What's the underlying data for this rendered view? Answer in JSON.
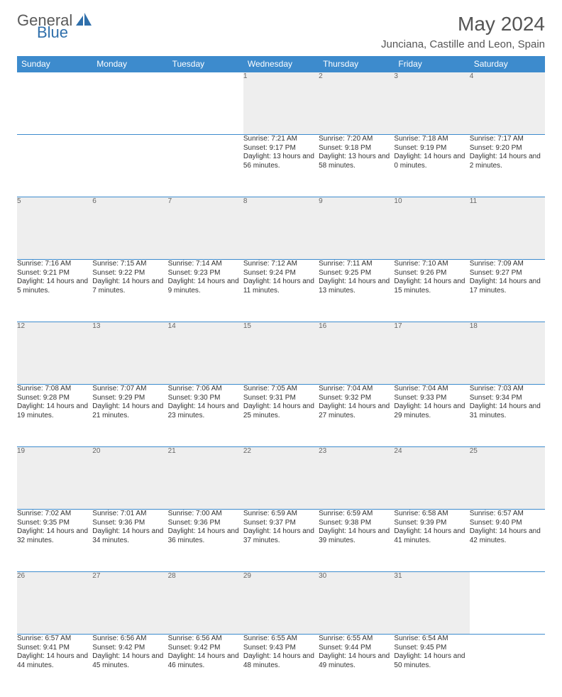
{
  "brand": {
    "word1": "General",
    "word2": "Blue",
    "text_color": "#5a5a5a",
    "accent_color": "#2f6fab"
  },
  "title": "May 2024",
  "location": "Junciana, Castille and Leon, Spain",
  "header_bg": "#3d8bcd",
  "header_fg": "#ffffff",
  "daynum_bg": "#eeeeee",
  "grid_line": "#3d8bcd",
  "days": [
    "Sunday",
    "Monday",
    "Tuesday",
    "Wednesday",
    "Thursday",
    "Friday",
    "Saturday"
  ],
  "weeks": [
    [
      null,
      null,
      null,
      {
        "n": "1",
        "sr": "7:21 AM",
        "ss": "9:17 PM",
        "dl": "13 hours and 56 minutes."
      },
      {
        "n": "2",
        "sr": "7:20 AM",
        "ss": "9:18 PM",
        "dl": "13 hours and 58 minutes."
      },
      {
        "n": "3",
        "sr": "7:18 AM",
        "ss": "9:19 PM",
        "dl": "14 hours and 0 minutes."
      },
      {
        "n": "4",
        "sr": "7:17 AM",
        "ss": "9:20 PM",
        "dl": "14 hours and 2 minutes."
      }
    ],
    [
      {
        "n": "5",
        "sr": "7:16 AM",
        "ss": "9:21 PM",
        "dl": "14 hours and 5 minutes."
      },
      {
        "n": "6",
        "sr": "7:15 AM",
        "ss": "9:22 PM",
        "dl": "14 hours and 7 minutes."
      },
      {
        "n": "7",
        "sr": "7:14 AM",
        "ss": "9:23 PM",
        "dl": "14 hours and 9 minutes."
      },
      {
        "n": "8",
        "sr": "7:12 AM",
        "ss": "9:24 PM",
        "dl": "14 hours and 11 minutes."
      },
      {
        "n": "9",
        "sr": "7:11 AM",
        "ss": "9:25 PM",
        "dl": "14 hours and 13 minutes."
      },
      {
        "n": "10",
        "sr": "7:10 AM",
        "ss": "9:26 PM",
        "dl": "14 hours and 15 minutes."
      },
      {
        "n": "11",
        "sr": "7:09 AM",
        "ss": "9:27 PM",
        "dl": "14 hours and 17 minutes."
      }
    ],
    [
      {
        "n": "12",
        "sr": "7:08 AM",
        "ss": "9:28 PM",
        "dl": "14 hours and 19 minutes."
      },
      {
        "n": "13",
        "sr": "7:07 AM",
        "ss": "9:29 PM",
        "dl": "14 hours and 21 minutes."
      },
      {
        "n": "14",
        "sr": "7:06 AM",
        "ss": "9:30 PM",
        "dl": "14 hours and 23 minutes."
      },
      {
        "n": "15",
        "sr": "7:05 AM",
        "ss": "9:31 PM",
        "dl": "14 hours and 25 minutes."
      },
      {
        "n": "16",
        "sr": "7:04 AM",
        "ss": "9:32 PM",
        "dl": "14 hours and 27 minutes."
      },
      {
        "n": "17",
        "sr": "7:04 AM",
        "ss": "9:33 PM",
        "dl": "14 hours and 29 minutes."
      },
      {
        "n": "18",
        "sr": "7:03 AM",
        "ss": "9:34 PM",
        "dl": "14 hours and 31 minutes."
      }
    ],
    [
      {
        "n": "19",
        "sr": "7:02 AM",
        "ss": "9:35 PM",
        "dl": "14 hours and 32 minutes."
      },
      {
        "n": "20",
        "sr": "7:01 AM",
        "ss": "9:36 PM",
        "dl": "14 hours and 34 minutes."
      },
      {
        "n": "21",
        "sr": "7:00 AM",
        "ss": "9:36 PM",
        "dl": "14 hours and 36 minutes."
      },
      {
        "n": "22",
        "sr": "6:59 AM",
        "ss": "9:37 PM",
        "dl": "14 hours and 37 minutes."
      },
      {
        "n": "23",
        "sr": "6:59 AM",
        "ss": "9:38 PM",
        "dl": "14 hours and 39 minutes."
      },
      {
        "n": "24",
        "sr": "6:58 AM",
        "ss": "9:39 PM",
        "dl": "14 hours and 41 minutes."
      },
      {
        "n": "25",
        "sr": "6:57 AM",
        "ss": "9:40 PM",
        "dl": "14 hours and 42 minutes."
      }
    ],
    [
      {
        "n": "26",
        "sr": "6:57 AM",
        "ss": "9:41 PM",
        "dl": "14 hours and 44 minutes."
      },
      {
        "n": "27",
        "sr": "6:56 AM",
        "ss": "9:42 PM",
        "dl": "14 hours and 45 minutes."
      },
      {
        "n": "28",
        "sr": "6:56 AM",
        "ss": "9:42 PM",
        "dl": "14 hours and 46 minutes."
      },
      {
        "n": "29",
        "sr": "6:55 AM",
        "ss": "9:43 PM",
        "dl": "14 hours and 48 minutes."
      },
      {
        "n": "30",
        "sr": "6:55 AM",
        "ss": "9:44 PM",
        "dl": "14 hours and 49 minutes."
      },
      {
        "n": "31",
        "sr": "6:54 AM",
        "ss": "9:45 PM",
        "dl": "14 hours and 50 minutes."
      },
      null
    ]
  ],
  "labels": {
    "sunrise": "Sunrise: ",
    "sunset": "Sunset: ",
    "daylight": "Daylight: "
  }
}
